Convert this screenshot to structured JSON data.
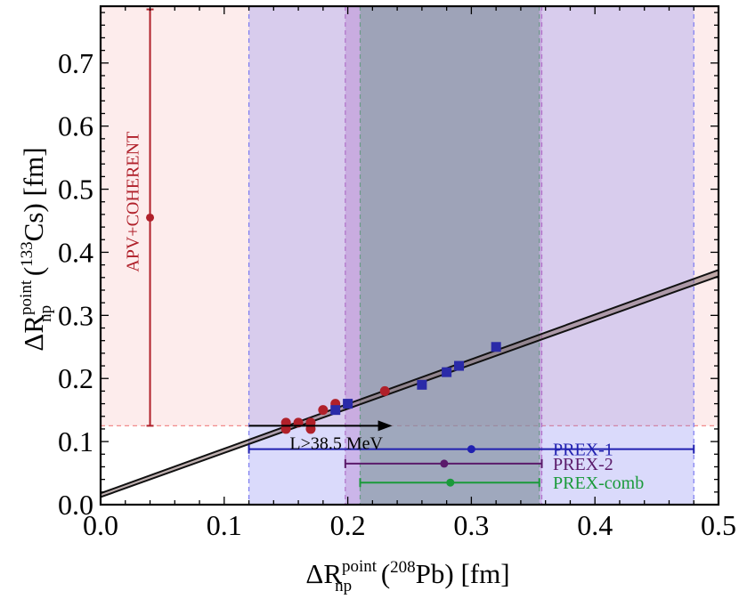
{
  "chart_data": {
    "type": "scatter",
    "title": "",
    "xlabel": {
      "main": "ΔR",
      "sup": "point",
      "sub": "np",
      "rest_open": " (",
      "iso": "208",
      "el": "Pb) [fm]"
    },
    "ylabel": {
      "main": "ΔR",
      "sup": "point",
      "sub": "np",
      "rest_open": "  (",
      "iso": "133",
      "el": "Cs)  [fm]"
    },
    "xlim": [
      0.0,
      0.5
    ],
    "ylim": [
      0.0,
      0.79
    ],
    "x_ticks": [
      "0.0",
      "0.1",
      "0.2",
      "0.3",
      "0.4",
      "0.5"
    ],
    "x_tick_values": [
      0.0,
      0.1,
      0.2,
      0.3,
      0.4,
      0.5
    ],
    "y_ticks": [
      "0.0",
      "0.1",
      "0.2",
      "0.3",
      "0.4",
      "0.5",
      "0.6",
      "0.7"
    ],
    "y_tick_values": [
      0.0,
      0.1,
      0.2,
      0.3,
      0.4,
      0.5,
      0.6,
      0.7
    ],
    "fit_band": {
      "x": [
        0.0,
        0.5
      ],
      "upper": [
        0.018,
        0.372
      ],
      "lower": [
        0.012,
        0.362
      ]
    },
    "horizontal_band": {
      "y": [
        0.125,
        0.79
      ],
      "color": "#f28b8b"
    },
    "vertical_bands": [
      {
        "name": "PREX-1",
        "x": [
          0.12,
          0.48
        ],
        "color": "#7b7bf0"
      },
      {
        "name": "PREX-2",
        "x": [
          0.198,
          0.357
        ],
        "color": "#b070c8"
      },
      {
        "name": "PREX-comb",
        "x": [
          0.21,
          0.355
        ],
        "color": "#6a9a88"
      }
    ],
    "series": [
      {
        "name": "",
        "marker": "circle",
        "color": "#b0202a",
        "x": [
          0.15,
          0.15,
          0.16,
          0.17,
          0.17,
          0.18,
          0.19,
          0.23
        ],
        "y": [
          0.13,
          0.12,
          0.13,
          0.13,
          0.12,
          0.15,
          0.16,
          0.18
        ]
      },
      {
        "name": "",
        "marker": "square",
        "color": "#2a2aa8",
        "x": [
          0.19,
          0.2,
          0.26,
          0.28,
          0.29,
          0.32
        ],
        "y": [
          0.15,
          0.16,
          0.19,
          0.21,
          0.22,
          0.25
        ]
      }
    ],
    "vertical_errorbar": {
      "label": "APV+COHERENT",
      "x": 0.04,
      "y": 0.455,
      "low": 0.125,
      "high": 0.785,
      "color": "#b0202a"
    },
    "horizontal_errorbars": [
      {
        "label": "PREX-1",
        "x": 0.3,
        "y": 0.088,
        "low": 0.12,
        "high": 0.48,
        "color": "#2020b0"
      },
      {
        "label": "PREX-2",
        "x": 0.278,
        "y": 0.065,
        "low": 0.198,
        "high": 0.357,
        "color": "#5a1a6a"
      },
      {
        "label": "PREX-comb",
        "x": 0.283,
        "y": 0.035,
        "low": 0.21,
        "high": 0.355,
        "color": "#1a9a3a"
      }
    ],
    "arrow": {
      "label": "L>38.5 MeV",
      "x_start": 0.12,
      "x_end": 0.236,
      "y": 0.125
    }
  }
}
